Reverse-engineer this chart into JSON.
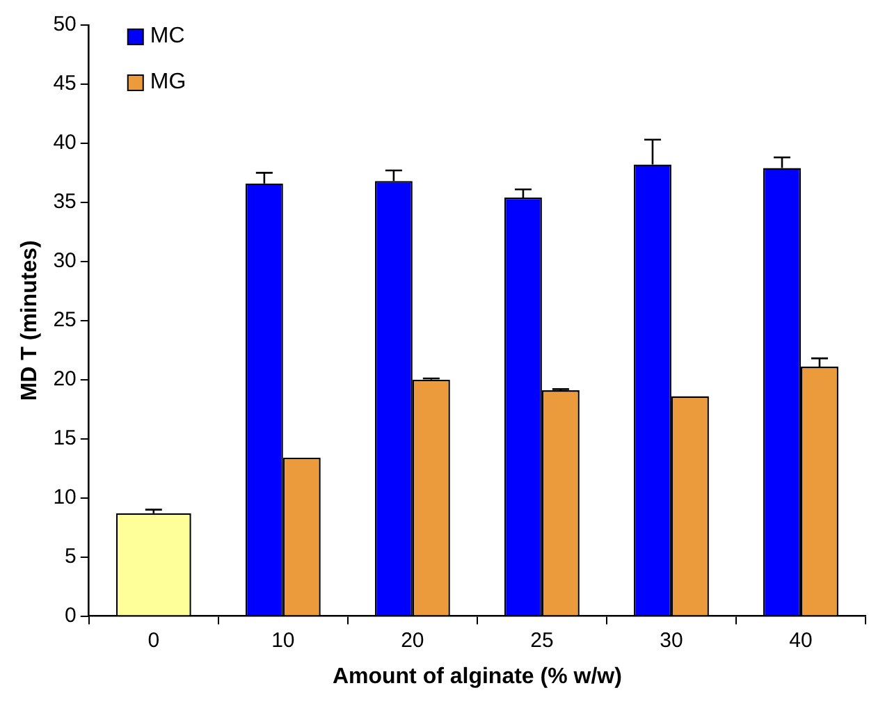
{
  "chart_data": {
    "type": "bar",
    "xlabel": "Amount of alginate (% w/w)",
    "ylabel": "MD T (minutes)",
    "categories": [
      "0",
      "10",
      "20",
      "25",
      "30",
      "40"
    ],
    "series": [
      {
        "name": "MC",
        "color": "#0000ff",
        "values": [
          null,
          36.6,
          36.8,
          35.4,
          38.2,
          37.9
        ],
        "errors": [
          null,
          [
            36.6,
            37.5
          ],
          [
            36.8,
            37.7
          ],
          [
            35.4,
            36.1
          ],
          [
            38.2,
            40.3
          ],
          [
            37.9,
            38.8
          ]
        ]
      },
      {
        "name": "MG",
        "color": "#eb9b3c",
        "values": [
          null,
          13.4,
          20.0,
          19.1,
          18.6,
          21.1
        ],
        "errors": [
          null,
          null,
          [
            20.0,
            20.1
          ],
          [
            19.1,
            19.2
          ],
          null,
          [
            21.1,
            21.8
          ]
        ]
      },
      {
        "color": "#ffff99",
        "values": [
          8.7,
          null,
          null,
          null,
          null,
          null
        ],
        "errors": [
          [
            8.7,
            9.0
          ],
          null,
          null,
          null,
          null,
          null
        ]
      }
    ],
    "ylim": [
      0,
      50
    ],
    "yticks": [
      0,
      5,
      10,
      15,
      20,
      25,
      30,
      35,
      40,
      45,
      50
    ],
    "grid": false,
    "legend": "top left"
  }
}
